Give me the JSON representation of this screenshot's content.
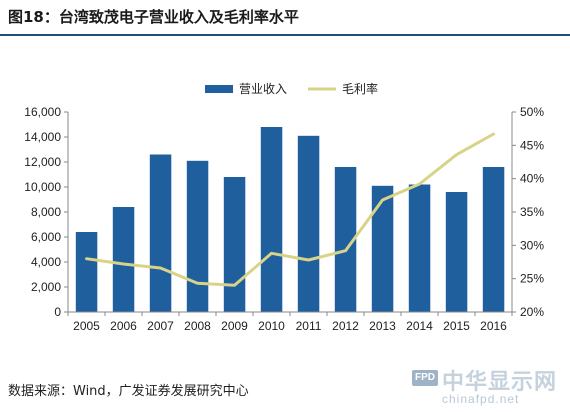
{
  "header": {
    "title": "图18：台湾致茂电子营业收入及毛利率水平"
  },
  "source": {
    "text": "数据来源：Wind，广发证券发展研究中心"
  },
  "watermark": {
    "brand_cn": "中华显示网",
    "brand_abbr": "FPD",
    "url": "chinafpd.net"
  },
  "colors": {
    "bar": "#1f5f9e",
    "line": "#d9d388",
    "axis": "#888888",
    "title_rule": "#1f4e79"
  },
  "chart_data": {
    "type": "bar",
    "categories": [
      "2005",
      "2006",
      "2007",
      "2008",
      "2009",
      "2010",
      "2011",
      "2012",
      "2013",
      "2014",
      "2015",
      "2016"
    ],
    "series": [
      {
        "name": "营业收入",
        "type": "bar",
        "axis": "left",
        "values": [
          6400,
          8400,
          12600,
          12100,
          10800,
          14800,
          14100,
          11600,
          10100,
          10200,
          9600,
          11600
        ]
      },
      {
        "name": "毛利率",
        "type": "line",
        "axis": "right",
        "values": [
          28.0,
          27.2,
          26.6,
          24.3,
          24.0,
          28.8,
          27.8,
          29.2,
          36.8,
          39.2,
          43.6,
          46.7
        ]
      }
    ],
    "y_left": {
      "min": 0,
      "max": 16000,
      "step": 2000,
      "ticks": [
        "0",
        "2,000",
        "4,000",
        "6,000",
        "8,000",
        "10,000",
        "12,000",
        "14,000",
        "16,000"
      ]
    },
    "y_right": {
      "min": 20,
      "max": 50,
      "step": 5,
      "ticks": [
        "20%",
        "25%",
        "30%",
        "35%",
        "40%",
        "45%",
        "50%"
      ]
    },
    "legend": {
      "position": "top-center"
    },
    "grid": false
  }
}
